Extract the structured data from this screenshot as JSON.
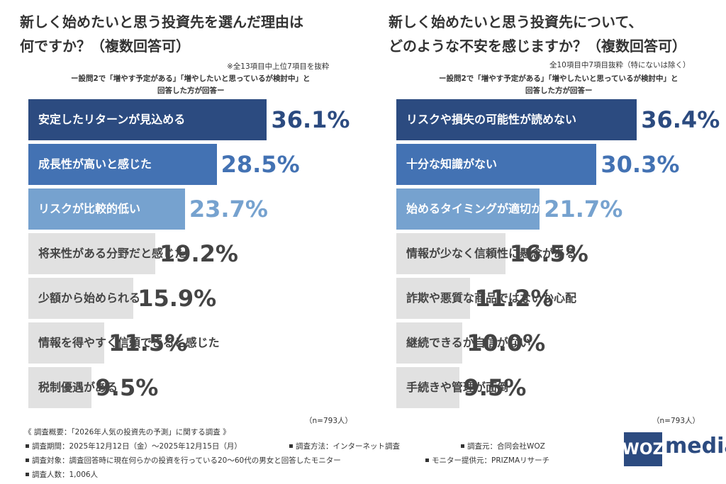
{
  "chart_data": [
    {
      "type": "hbar",
      "title": [
        "新しく始めたいと思う投資先を選んだ理由は",
        "何ですか？（複数回答可）"
      ],
      "note": "※全13項目中上位7項目を抜粋",
      "subtitle": [
        "ー設問2で「増やす予定がある」「増やしたいと思っているが検討中」と",
        "回答した方が回答ー"
      ],
      "categories": [
        "安定したリターンが見込める",
        "成長性が高いと感じた",
        "リスクが比較的低い",
        "将来性がある分野だと感じた",
        "少額から始められる",
        "情報を得やすく信頼できると感じた",
        "税制優遇がある"
      ],
      "values": [
        36.1,
        28.5,
        23.7,
        19.2,
        15.9,
        11.5,
        9.5
      ],
      "value_labels": [
        "36.1%",
        "28.5%",
        "23.7%",
        "19.2%",
        "15.9%",
        "11.5%",
        "9.5%"
      ],
      "colors": [
        "#2c4b80",
        "#4372b3",
        "#76a2cf",
        "#e1e1e1",
        "#e1e1e1",
        "#e1e1e1",
        "#e1e1e1"
      ],
      "sample": "（n=793人）"
    },
    {
      "type": "hbar",
      "title": [
        "新しく始めたいと思う投資先について、",
        "どのような不安を感じますか？（複数回答可）"
      ],
      "note": "全10項目中7項目抜粋（特にないは除く）",
      "subtitle": [
        "ー設問2で「増やす予定がある」「増やしたいと思っているが検討中」と",
        "回答した方が回答ー"
      ],
      "categories": [
        "リスクや損失の可能性が読めない",
        "十分な知識がない",
        "始めるタイミングが適切か\n判断がつかない",
        "情報が少なく信頼性に懸念がある",
        "詐欺や悪質な商品ではないか心配",
        "継続できるか自信がない",
        "手続きや管理が面倒"
      ],
      "values": [
        36.4,
        30.3,
        21.7,
        16.5,
        11.2,
        10.0,
        9.5
      ],
      "value_labels": [
        "36.4%",
        "30.3%",
        "21.7%",
        "16.5%",
        "11.2%",
        "10.0%",
        "9.5%"
      ],
      "colors": [
        "#2c4b80",
        "#4372b3",
        "#76a2cf",
        "#e1e1e1",
        "#e1e1e1",
        "#e1e1e1",
        "#e1e1e1"
      ],
      "sample": "（n=793人）"
    }
  ],
  "footer": {
    "heading": "《 調査概要：「2026年人気の投資先の予測」に関する調査 》",
    "items": [
      "調査期間：2025年12月12日（金）〜2025年12月15日（月）",
      "調査方法：インターネット調査",
      "調査元：合同会社WOZ",
      "調査対象：調査回答時に現在何らかの投資を行っている20〜60代の男女と回答したモニター",
      "モニター提供元：PRIZMAリサーチ",
      "調査人数：1,006人"
    ],
    "logo": [
      "WOZ",
      "media"
    ]
  }
}
